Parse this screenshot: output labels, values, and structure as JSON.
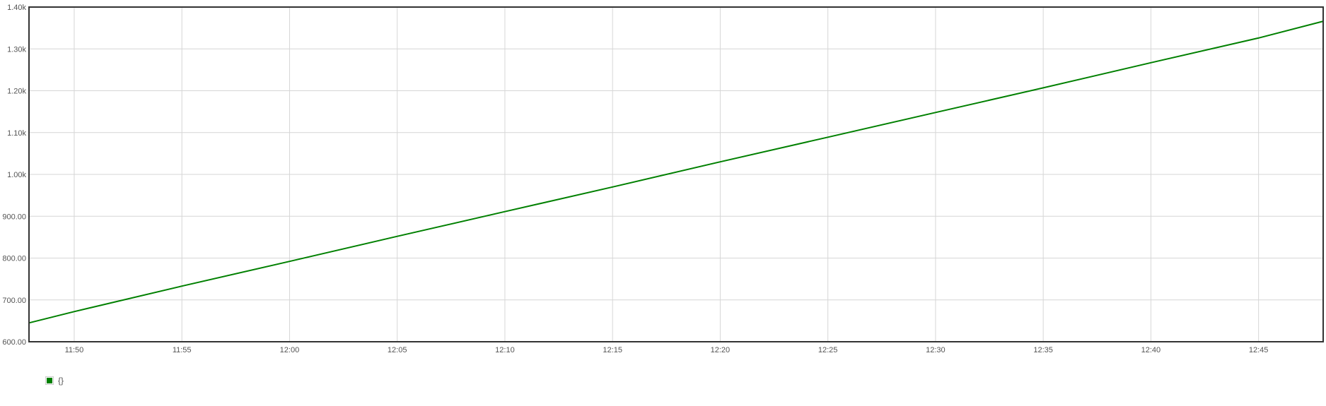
{
  "chart_data": {
    "type": "line",
    "title": "",
    "xlabel": "",
    "ylabel": "",
    "x_range": [
      "11:47:54",
      "12:48:00"
    ],
    "ylim": [
      600,
      1400
    ],
    "y_ticks": [
      {
        "value": 600,
        "label": "600.00"
      },
      {
        "value": 700,
        "label": "700.00"
      },
      {
        "value": 800,
        "label": "800.00"
      },
      {
        "value": 900,
        "label": "900.00"
      },
      {
        "value": 1000,
        "label": "1.00k"
      },
      {
        "value": 1100,
        "label": "1.10k"
      },
      {
        "value": 1200,
        "label": "1.20k"
      },
      {
        "value": 1300,
        "label": "1.30k"
      },
      {
        "value": 1400,
        "label": "1.40k"
      }
    ],
    "x_ticks": [
      "11:50",
      "11:55",
      "12:00",
      "12:05",
      "12:10",
      "12:15",
      "12:20",
      "12:25",
      "12:30",
      "12:35",
      "12:40",
      "12:45"
    ],
    "grid": true,
    "legend_position": "bottom-left",
    "series": [
      {
        "name": "{}",
        "color": "#008000",
        "points": [
          {
            "x": "11:47:54",
            "y": 645
          },
          {
            "x": "11:50",
            "y": 672
          },
          {
            "x": "11:55",
            "y": 733
          },
          {
            "x": "12:00",
            "y": 792
          },
          {
            "x": "12:05",
            "y": 852
          },
          {
            "x": "12:10",
            "y": 911
          },
          {
            "x": "12:15",
            "y": 970
          },
          {
            "x": "12:20",
            "y": 1030
          },
          {
            "x": "12:25",
            "y": 1089
          },
          {
            "x": "12:30",
            "y": 1148
          },
          {
            "x": "12:35",
            "y": 1207
          },
          {
            "x": "12:40",
            "y": 1267
          },
          {
            "x": "12:45",
            "y": 1326
          },
          {
            "x": "12:48:00",
            "y": 1366
          }
        ]
      }
    ]
  }
}
